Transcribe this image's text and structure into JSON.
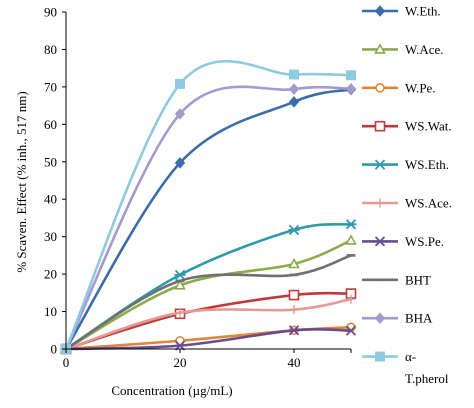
{
  "chart_data": {
    "type": "line",
    "xlabel": "Concentration (µg/mL)",
    "ylabel": "% Scaven. Effect (% inh., 517 nm)",
    "xlim": [
      0,
      50
    ],
    "ylim": [
      0,
      90
    ],
    "xticks": [
      "0",
      "20",
      "40"
    ],
    "yticks": [
      "0",
      "10",
      "20",
      "30",
      "40",
      "50",
      "60",
      "70",
      "80",
      "90"
    ],
    "legend_position": "right",
    "grid": false,
    "series": [
      {
        "name": "W.Eth.",
        "color": "#3b6ea8",
        "marker": "diamond",
        "x": [
          0,
          20,
          40,
          50
        ],
        "y": [
          0,
          49.7,
          66,
          69.3
        ]
      },
      {
        "name": "W.Ace.",
        "color": "#8bac4e",
        "marker": "triangle",
        "x": [
          0,
          20,
          40,
          50
        ],
        "y": [
          0,
          17,
          22.7,
          29
        ]
      },
      {
        "name": "W.Pe.",
        "color": "#e0863a",
        "marker": "circle",
        "x": [
          0,
          20,
          40,
          50
        ],
        "y": [
          0,
          2.2,
          5,
          5.8
        ]
      },
      {
        "name": "WS.Wat.",
        "color": "#c0393b",
        "marker": "square-open",
        "x": [
          0,
          20,
          40,
          50
        ],
        "y": [
          0,
          9.4,
          14.4,
          14.8
        ]
      },
      {
        "name": "WS.Eth.",
        "color": "#2f9aad",
        "marker": "asterisk",
        "x": [
          0,
          20,
          40,
          50
        ],
        "y": [
          0,
          19.8,
          31.8,
          33.3
        ]
      },
      {
        "name": "WS.Ace.",
        "color": "#e39a95",
        "marker": "plus",
        "x": [
          0,
          20,
          40,
          50
        ],
        "y": [
          0,
          9.7,
          10.5,
          13.3
        ]
      },
      {
        "name": "WS.Pe.",
        "color": "#6a4c8e",
        "marker": "x",
        "x": [
          0,
          20,
          40,
          50
        ],
        "y": [
          0,
          0.9,
          5,
          4.9
        ]
      },
      {
        "name": "BHT",
        "color": "#707070",
        "marker": "dash",
        "x": [
          0,
          20,
          40,
          50
        ],
        "y": [
          0,
          18.2,
          19.8,
          25
        ]
      },
      {
        "name": "BHA",
        "color": "#a59ad0",
        "marker": "diamond",
        "x": [
          0,
          20,
          40,
          50
        ],
        "y": [
          0,
          62.8,
          69.4,
          69.5
        ]
      },
      {
        "name": "α-T.pherol",
        "color": "#8ecae0",
        "marker": "square",
        "x": [
          0,
          20,
          40,
          50
        ],
        "y": [
          0,
          70.8,
          73.3,
          73.1
        ]
      }
    ]
  }
}
